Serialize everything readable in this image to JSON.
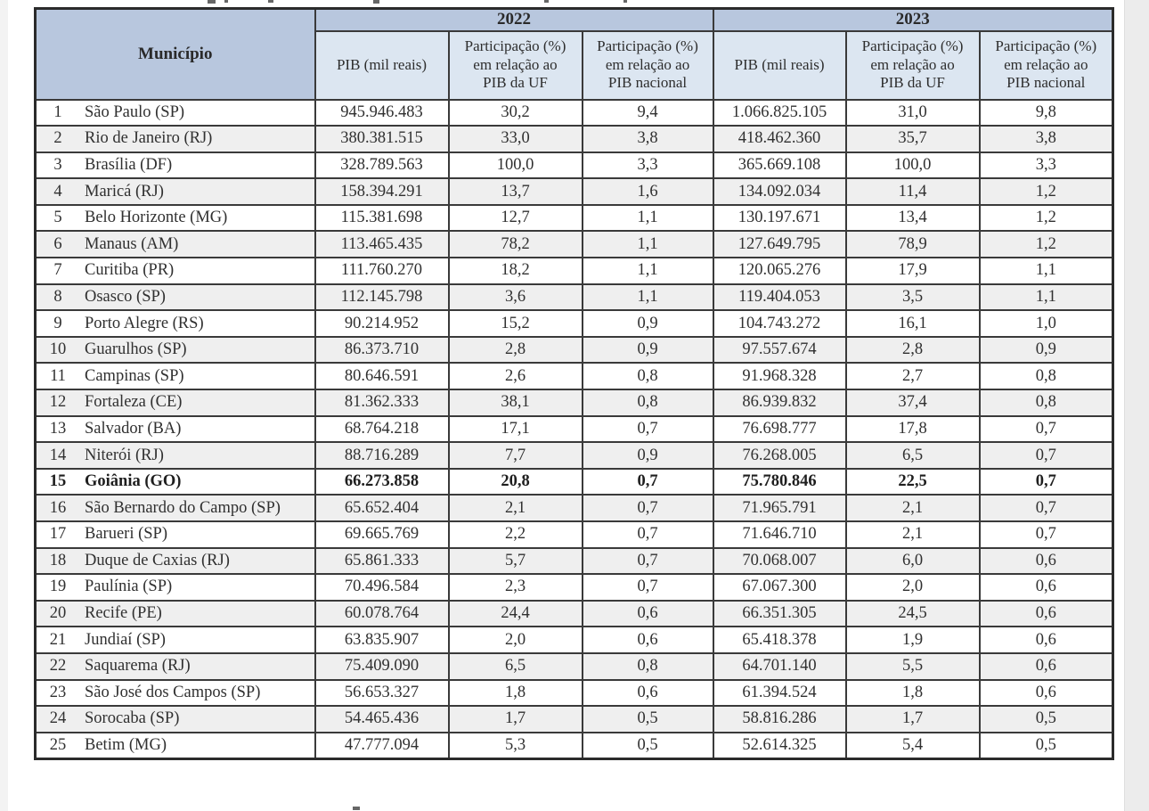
{
  "table": {
    "municipio_header": "Município",
    "year_groups": [
      {
        "year": "2022",
        "columns": [
          "PIB (mil reais)",
          "Participação (%)\nem relação ao\nPIB da UF",
          "Participação (%)\nem relação ao\nPIB nacional"
        ]
      },
      {
        "year": "2023",
        "columns": [
          "PIB (mil reais)",
          "Participação (%)\nem relação ao\nPIB da UF",
          "Participação (%)\nem relação ao\nPIB nacional"
        ]
      }
    ],
    "bold_row_index": 14,
    "rows": [
      [
        "1",
        "São Paulo (SP)",
        "945.946.483",
        "30,2",
        "9,4",
        "1.066.825.105",
        "31,0",
        "9,8"
      ],
      [
        "2",
        "Rio de Janeiro (RJ)",
        "380.381.515",
        "33,0",
        "3,8",
        "418.462.360",
        "35,7",
        "3,8"
      ],
      [
        "3",
        "Brasília (DF)",
        "328.789.563",
        "100,0",
        "3,3",
        "365.669.108",
        "100,0",
        "3,3"
      ],
      [
        "4",
        "Maricá (RJ)",
        "158.394.291",
        "13,7",
        "1,6",
        "134.092.034",
        "11,4",
        "1,2"
      ],
      [
        "5",
        "Belo Horizonte (MG)",
        "115.381.698",
        "12,7",
        "1,1",
        "130.197.671",
        "13,4",
        "1,2"
      ],
      [
        "6",
        "Manaus (AM)",
        "113.465.435",
        "78,2",
        "1,1",
        "127.649.795",
        "78,9",
        "1,2"
      ],
      [
        "7",
        "Curitiba (PR)",
        "111.760.270",
        "18,2",
        "1,1",
        "120.065.276",
        "17,9",
        "1,1"
      ],
      [
        "8",
        "Osasco (SP)",
        "112.145.798",
        "3,6",
        "1,1",
        "119.404.053",
        "3,5",
        "1,1"
      ],
      [
        "9",
        "Porto Alegre (RS)",
        "90.214.952",
        "15,2",
        "0,9",
        "104.743.272",
        "16,1",
        "1,0"
      ],
      [
        "10",
        "Guarulhos (SP)",
        "86.373.710",
        "2,8",
        "0,9",
        "97.557.674",
        "2,8",
        "0,9"
      ],
      [
        "11",
        "Campinas (SP)",
        "80.646.591",
        "2,6",
        "0,8",
        "91.968.328",
        "2,7",
        "0,8"
      ],
      [
        "12",
        "Fortaleza (CE)",
        "81.362.333",
        "38,1",
        "0,8",
        "86.939.832",
        "37,4",
        "0,8"
      ],
      [
        "13",
        "Salvador (BA)",
        "68.764.218",
        "17,1",
        "0,7",
        "76.698.777",
        "17,8",
        "0,7"
      ],
      [
        "14",
        "Niterói (RJ)",
        "88.716.289",
        "7,7",
        "0,9",
        "76.268.005",
        "6,5",
        "0,7"
      ],
      [
        "15",
        "Goiânia (GO)",
        "66.273.858",
        "20,8",
        "0,7",
        "75.780.846",
        "22,5",
        "0,7"
      ],
      [
        "16",
        "São Bernardo do Campo (SP)",
        "65.652.404",
        "2,1",
        "0,7",
        "71.965.791",
        "2,1",
        "0,7"
      ],
      [
        "17",
        "Barueri (SP)",
        "69.665.769",
        "2,2",
        "0,7",
        "71.646.710",
        "2,1",
        "0,7"
      ],
      [
        "18",
        "Duque de Caxias (RJ)",
        "65.861.333",
        "5,7",
        "0,7",
        "70.068.007",
        "6,0",
        "0,6"
      ],
      [
        "19",
        "Paulínia (SP)",
        "70.496.584",
        "2,3",
        "0,7",
        "67.067.300",
        "2,0",
        "0,6"
      ],
      [
        "20",
        "Recife (PE)",
        "60.078.764",
        "24,4",
        "0,6",
        "66.351.305",
        "24,5",
        "0,6"
      ],
      [
        "21",
        "Jundiaí (SP)",
        "63.835.907",
        "2,0",
        "0,6",
        "65.418.378",
        "1,9",
        "0,6"
      ],
      [
        "22",
        "Saquarema (RJ)",
        "75.409.090",
        "6,5",
        "0,8",
        "64.701.140",
        "5,5",
        "0,6"
      ],
      [
        "23",
        "São José dos Campos (SP)",
        "56.653.327",
        "1,8",
        "0,6",
        "61.394.524",
        "1,8",
        "0,6"
      ],
      [
        "24",
        "Sorocaba (SP)",
        "54.465.436",
        "1,7",
        "0,5",
        "58.816.286",
        "1,7",
        "0,5"
      ],
      [
        "25",
        "Betim (MG)",
        "47.777.094",
        "5,3",
        "0,5",
        "52.614.325",
        "5,4",
        "0,5"
      ]
    ]
  },
  "colors": {
    "year_band": "#b8c7de",
    "sub_band": "#dce6f1",
    "stripe": "#efefef",
    "border": "#3a3a3a"
  }
}
